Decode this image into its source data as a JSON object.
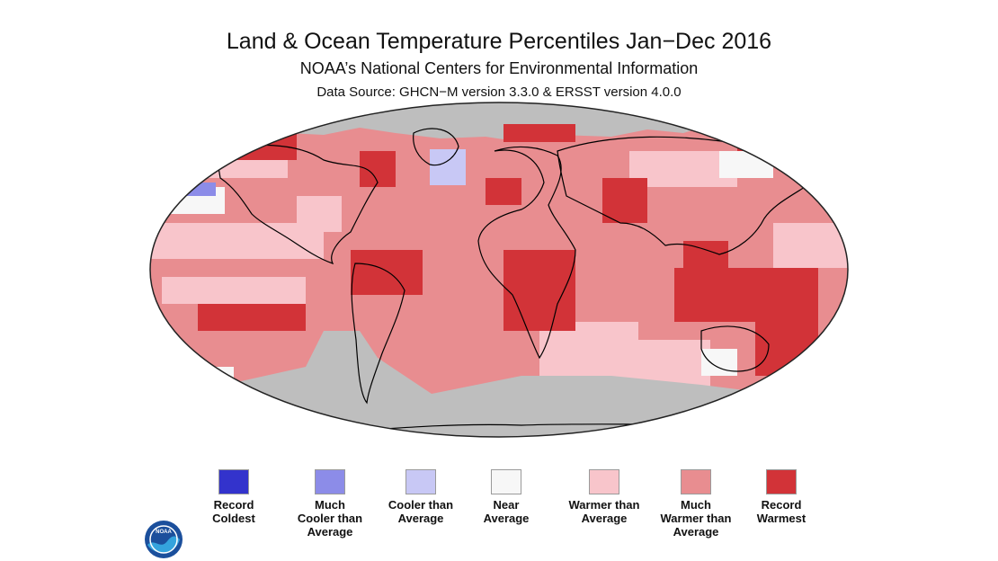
{
  "header": {
    "title": "Land & Ocean Temperature Percentiles Jan−Dec 2016",
    "subtitle": "NOAA’s National Centers for Environmental Information",
    "source": "Data Source: GHCN−M version 3.3.0 & ERSST version 4.0.0"
  },
  "colors": {
    "record_coldest": "#3333cc",
    "much_cooler": "#8c8ce8",
    "cooler": "#c8c8f5",
    "near_average": "#f7f7f7",
    "warmer": "#f8c5cb",
    "much_warmer": "#e88d90",
    "record_warmest": "#d23338",
    "no_data": "#bebebe",
    "coastline": "#000000"
  },
  "legend": [
    {
      "label": "Record\nColdest",
      "color": "#3333cc"
    },
    {
      "label": "Much\nCooler than\nAverage",
      "color": "#8c8ce8"
    },
    {
      "label": "Cooler than\nAverage",
      "color": "#c8c8f5"
    },
    {
      "label": "Near\nAverage",
      "color": "#f7f7f7"
    },
    {
      "label": "Warmer than\nAverage",
      "color": "#f8c5cb"
    },
    {
      "label": "Much\nWarmer than\nAverage",
      "color": "#e88d90"
    },
    {
      "label": "Record\nWarmest",
      "color": "#d23338"
    }
  ],
  "logo": {
    "icon": "noaa-logo-icon",
    "text": "NOAA"
  }
}
